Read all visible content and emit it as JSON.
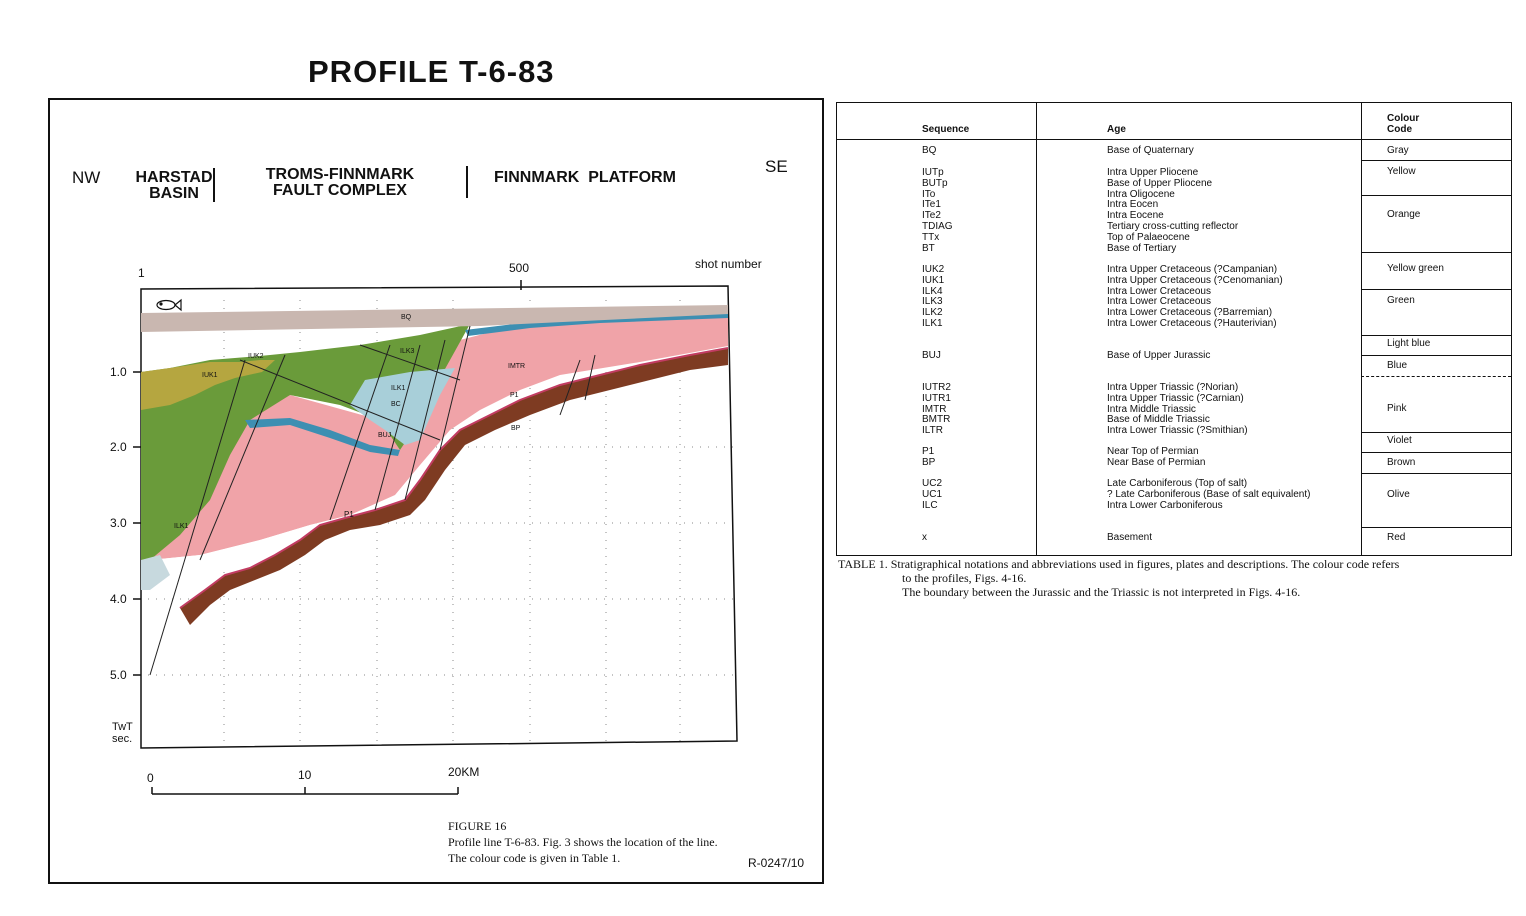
{
  "figure": {
    "title": "PROFILE T-6-83",
    "dir_left": "NW",
    "dir_right": "SE",
    "region_1": "HARSTAD\nBASIN",
    "region_2": "TROMS-FINNMARK\nFAULT COMPLEX",
    "region_3": "FINNMARK  PLATFORM",
    "shot_axis": {
      "ticks": [
        "1",
        "500"
      ],
      "label": "shot number"
    },
    "time_axis": {
      "ticks": [
        "1.0",
        "2.0",
        "3.0",
        "4.0",
        "5.0"
      ],
      "label_1": "TwT",
      "label_2": "sec."
    },
    "scale_bar": {
      "ticks": [
        "0",
        "10",
        "20KM"
      ]
    },
    "horizon_labels": [
      "BQ",
      "IUK2",
      "IUK1",
      "ILK3",
      "ILK1",
      "BC",
      "BUJ",
      "IMTR",
      "P1",
      "BP",
      "P1",
      "ILK1"
    ],
    "caption_line1": "FIGURE 16",
    "caption_line2": "Profile line T-6-83. Fig. 3 shows the location of the line.",
    "caption_line3": "The colour code is given in Table 1.",
    "code": "R-0247/10",
    "colors": {
      "quaternary": "#c9b7b0",
      "yellow_green": "#b5a640",
      "green": "#6a9b3a",
      "light_blue": "#a8cfd9",
      "blue": "#3d8fb2",
      "pink": "#f0a3a8",
      "brown": "#7e3b22",
      "violet": "#c23c62"
    }
  },
  "table": {
    "headers": {
      "sequence": "Sequence",
      "age": "Age",
      "colour_1": "Colour",
      "colour_2": "Code"
    },
    "groups": [
      {
        "seq": [
          "BQ"
        ],
        "age": [
          "Base of Quaternary"
        ]
      },
      {
        "seq": [
          "IUTp",
          "BUTp",
          "ITo",
          "ITe1",
          "ITe2",
          "TDIAG",
          "TTx",
          "BT"
        ],
        "age": [
          "Intra Upper Pliocene",
          "Base of Upper Pliocene",
          "Intra Oligocene",
          "Intra Eocen",
          "Intra Eocene",
          "Tertiary cross-cutting reflector",
          "Top of Palaeocene",
          "Base of Tertiary"
        ]
      },
      {
        "seq": [
          "IUK2",
          "IUK1",
          "ILK4",
          "ILK3",
          "ILK2",
          "ILK1"
        ],
        "age": [
          "Intra Upper Cretaceous (?Campanian)",
          "Intra Upper Cretaceous (?Cenomanian)",
          "Intra Lower Cretaceous",
          "Intra Lower Cretaceous",
          "Intra Lower Cretaceous (?Barremian)",
          "Intra Lower Cretaceous (?Hauterivian)"
        ]
      },
      {
        "seq": [
          "BUJ"
        ],
        "age": [
          "Base of Upper Jurassic"
        ]
      },
      {
        "seq": [
          "IUTR2",
          "IUTR1",
          "IMTR",
          "BMTR",
          "ILTR"
        ],
        "age": [
          "Intra Upper Triassic (?Norian)",
          "Intra Upper Triassic (?Carnian)",
          "Intra Middle Triassic",
          "Base of Middle Triassic",
          "Intra Lower Triassic (?Smithian)"
        ]
      },
      {
        "seq": [
          "P1",
          "BP"
        ],
        "age": [
          "Near Top of Permian",
          "Near Base of Permian"
        ]
      },
      {
        "seq": [
          "UC2",
          "UC1",
          "ILC"
        ],
        "age": [
          "Late Carboniferous (Top of salt)",
          "? Late Carboniferous (Base of salt equivalent)",
          "Intra Lower Carboniferous"
        ]
      },
      {
        "seq": [
          "x"
        ],
        "age": [
          "Basement"
        ]
      }
    ],
    "colour_codes": [
      "Gray",
      "Yellow",
      "Orange",
      "Yellow green",
      "Green",
      "Light blue",
      "Blue",
      "Pink",
      "Violet",
      "Brown",
      "Olive",
      "Red"
    ],
    "caption_line1": "TABLE 1. Stratigraphical notations and abbreviations used in figures, plates and descriptions. The colour code refers",
    "caption_line2": "to the profiles, Figs. 4-16.",
    "caption_line3": "The boundary between the Jurassic and the Triassic is not interpreted in Figs. 4-16."
  }
}
